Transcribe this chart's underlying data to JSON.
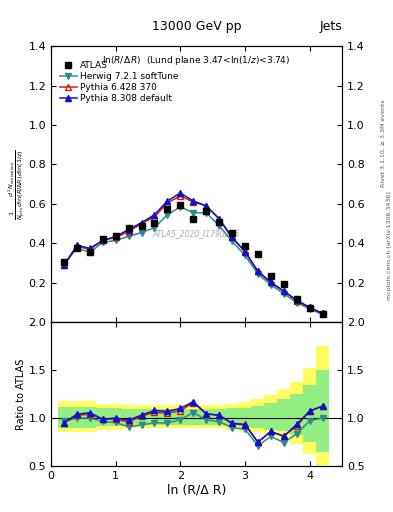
{
  "title_top": "13000 GeV pp",
  "title_right": "Jets",
  "plot_label": "ln(R/Δ R)  (Lund plane 3.47<ln(1/z)<3.74)",
  "watermark": "ATLAS_2020_I1790256",
  "right_label_top": "Rivet 3.1.10, ≥ 3.3M events",
  "right_label_bot": "mcplots.cern.ch [arXiv:1306.3436]",
  "xlabel": "ln (R/Δ R)",
  "ylabel_ratio": "Ratio to ATLAS",
  "xlim": [
    0,
    4.5
  ],
  "ylim_main": [
    0.0,
    1.4
  ],
  "ylim_ratio": [
    0.5,
    2.0
  ],
  "yticks_main": [
    0.2,
    0.4,
    0.6,
    0.8,
    1.0,
    1.2,
    1.4
  ],
  "yticks_ratio": [
    0.5,
    1.0,
    1.5,
    2.0
  ],
  "atlas_x": [
    0.2,
    0.4,
    0.6,
    0.8,
    1.0,
    1.2,
    1.4,
    1.6,
    1.8,
    2.0,
    2.2,
    2.4,
    2.6,
    2.8,
    3.0,
    3.2,
    3.4,
    3.6,
    3.8,
    4.0,
    4.2
  ],
  "atlas_y": [
    0.305,
    0.375,
    0.355,
    0.42,
    0.435,
    0.48,
    0.49,
    0.505,
    0.575,
    0.595,
    0.525,
    0.565,
    0.51,
    0.455,
    0.385,
    0.345,
    0.235,
    0.195,
    0.12,
    0.07,
    0.04
  ],
  "atlas_sys_frac_lo": [
    0.1,
    0.1,
    0.1,
    0.08,
    0.08,
    0.07,
    0.07,
    0.07,
    0.07,
    0.07,
    0.07,
    0.07,
    0.07,
    0.08,
    0.09,
    0.1,
    0.12,
    0.14,
    0.18,
    0.25,
    0.35
  ],
  "atlas_sys_frac_hi": [
    0.12,
    0.12,
    0.12,
    0.1,
    0.1,
    0.09,
    0.09,
    0.09,
    0.09,
    0.09,
    0.09,
    0.09,
    0.09,
    0.1,
    0.11,
    0.13,
    0.16,
    0.2,
    0.25,
    0.35,
    0.5
  ],
  "herwig_x": [
    0.2,
    0.4,
    0.6,
    0.8,
    1.0,
    1.2,
    1.4,
    1.6,
    1.8,
    2.0,
    2.2,
    2.4,
    2.6,
    2.8,
    3.0,
    3.2,
    3.4,
    3.6,
    3.8,
    4.0,
    4.2
  ],
  "herwig_y": [
    0.295,
    0.375,
    0.355,
    0.405,
    0.415,
    0.435,
    0.455,
    0.48,
    0.545,
    0.585,
    0.555,
    0.555,
    0.49,
    0.41,
    0.34,
    0.245,
    0.19,
    0.145,
    0.1,
    0.068,
    0.04
  ],
  "pythia6_x": [
    0.2,
    0.4,
    0.6,
    0.8,
    1.0,
    1.2,
    1.4,
    1.6,
    1.8,
    2.0,
    2.2,
    2.4,
    2.6,
    2.8,
    3.0,
    3.2,
    3.4,
    3.6,
    3.8,
    4.0,
    4.2
  ],
  "pythia6_y": [
    0.29,
    0.385,
    0.37,
    0.415,
    0.43,
    0.46,
    0.5,
    0.535,
    0.605,
    0.64,
    0.61,
    0.59,
    0.525,
    0.43,
    0.36,
    0.258,
    0.202,
    0.158,
    0.11,
    0.075,
    0.045
  ],
  "pythia8_x": [
    0.2,
    0.4,
    0.6,
    0.8,
    1.0,
    1.2,
    1.4,
    1.6,
    1.8,
    2.0,
    2.2,
    2.4,
    2.6,
    2.8,
    3.0,
    3.2,
    3.4,
    3.6,
    3.8,
    4.0,
    4.2
  ],
  "pythia8_y": [
    0.29,
    0.39,
    0.375,
    0.415,
    0.435,
    0.47,
    0.505,
    0.545,
    0.615,
    0.655,
    0.615,
    0.59,
    0.525,
    0.43,
    0.358,
    0.258,
    0.202,
    0.158,
    0.112,
    0.075,
    0.045
  ],
  "color_atlas": "#000000",
  "color_herwig": "#2e8b8b",
  "color_pythia6": "#cc2200",
  "color_pythia8": "#1111cc",
  "label_atlas": "ATLAS",
  "label_herwig": "Herwig 7.2.1 softTune",
  "label_pythia6": "Pythia 6.428 370",
  "label_pythia8": "Pythia 8.308 default"
}
